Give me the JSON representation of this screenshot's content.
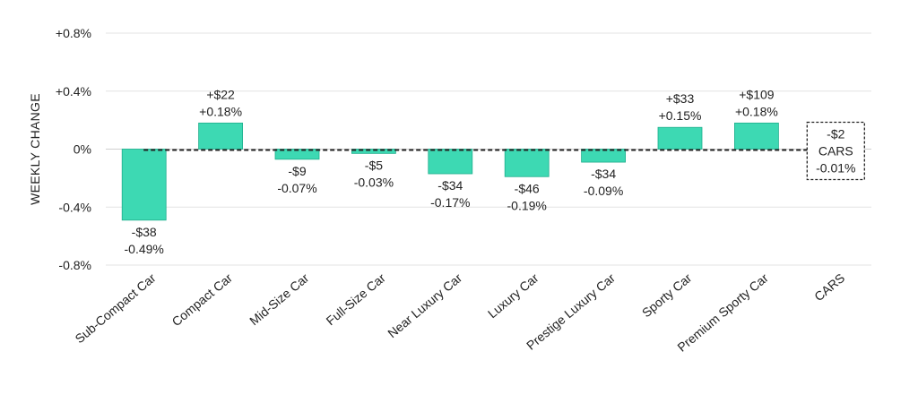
{
  "chart_data": {
    "type": "bar",
    "ylabel": "WEEKLY CHANGE",
    "ylim": [
      -0.8,
      0.8
    ],
    "yticks": [
      {
        "value": 0.8,
        "label": "+0.8%"
      },
      {
        "value": 0.4,
        "label": "+0.4%"
      },
      {
        "value": 0.0,
        "label": "0%"
      },
      {
        "value": -0.4,
        "label": "-0.4%"
      },
      {
        "value": -0.8,
        "label": "-0.8%"
      }
    ],
    "grid": true,
    "bar_color": "#3dd9b3",
    "categories": [
      "Sub-Compact Car",
      "Compact Car",
      "Mid-Size Car",
      "Full-Size Car",
      "Near Luxury Car",
      "Luxury Car",
      "Prestige Luxury Car",
      "Sporty Car",
      "Premium Sporty Car",
      "CARS"
    ],
    "values": [
      -0.49,
      0.18,
      -0.07,
      -0.03,
      -0.17,
      -0.19,
      -0.09,
      0.15,
      0.18,
      -0.01
    ],
    "dollar_labels": [
      "-$38",
      "+$22",
      "-$9",
      "-$5",
      "-$34",
      "-$46",
      "-$34",
      "+$33",
      "+$109",
      "-$2"
    ],
    "percent_labels": [
      "-0.49%",
      "+0.18%",
      "-0.07%",
      "-0.03%",
      "-0.17%",
      "-0.19%",
      "-0.09%",
      "+0.15%",
      "+0.18%",
      "-0.01%"
    ],
    "total_box": {
      "dollar": "-$2",
      "label": "CARS",
      "percent": "-0.01%"
    }
  }
}
